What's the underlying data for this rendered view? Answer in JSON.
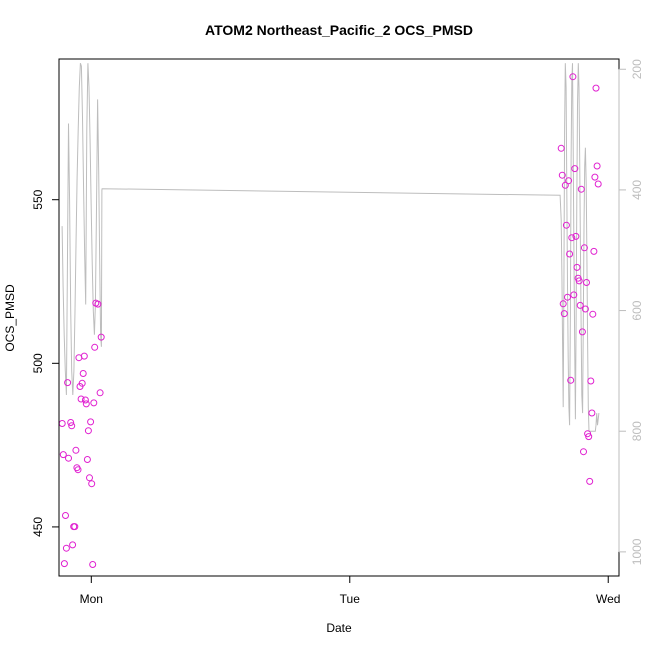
{
  "chart_data": {
    "type": "scatter",
    "title": "ATOM2 Northeast_Pacific_2 OCS_PMSD",
    "xlabel": "Date",
    "ylabel": "OCS_PMSD",
    "x_axis": {
      "type": "date",
      "range": [
        "Sun 21:00",
        "Wed 01:00"
      ],
      "ticks": [
        "Mon",
        "Tue",
        "Wed"
      ]
    },
    "y_left": {
      "range": [
        435,
        593
      ],
      "ticks": [
        450,
        500,
        550
      ]
    },
    "y_right": {
      "reversed": true,
      "range": [
        1040,
        183
      ],
      "ticks": [
        200,
        400,
        600,
        800,
        1000
      ],
      "tick_color": "#bdbdbd"
    },
    "grid": false,
    "legend": "none",
    "series": [
      {
        "type": "scatter",
        "marker": "open-circle",
        "color": "#e020d0",
        "axis": "left",
        "points": [
          [
            "Sun 21:18",
            481.6
          ],
          [
            "Sun 21:24",
            472.1
          ],
          [
            "Sun 21:30",
            438.8
          ],
          [
            "Sun 21:36",
            453.5
          ],
          [
            "Sun 21:41",
            443.5
          ],
          [
            "Sun 21:48",
            494.1
          ],
          [
            "Sun 21:53",
            471.0
          ],
          [
            "Sun 22:05",
            481.9
          ],
          [
            "Sun 22:11",
            480.9
          ],
          [
            "Sun 22:16",
            444.5
          ],
          [
            "Sun 22:22",
            450.1
          ],
          [
            "Sun 22:28",
            450.1
          ],
          [
            "Sun 22:34",
            473.4
          ],
          [
            "Sun 22:40",
            468.1
          ],
          [
            "Sun 22:46",
            467.5
          ],
          [
            "Sun 22:51",
            501.7
          ],
          [
            "Sun 22:57",
            492.9
          ],
          [
            "Sun 23:03",
            489.1
          ],
          [
            "Sun 23:09",
            493.9
          ],
          [
            "Sun 23:15",
            496.9
          ],
          [
            "Sun 23:21",
            502.2
          ],
          [
            "Sun 23:27",
            488.8
          ],
          [
            "Sun 23:32",
            487.6
          ],
          [
            "Sun 23:38",
            470.6
          ],
          [
            "Sun 23:44",
            479.4
          ],
          [
            "Sun 23:50",
            465.0
          ],
          [
            "Sun 23:56",
            482.1
          ],
          [
            "Mon 00:02",
            463.2
          ],
          [
            "Mon 00:08",
            438.5
          ],
          [
            "Mon 00:14",
            487.9
          ],
          [
            "Mon 00:19",
            504.9
          ],
          [
            "Mon 00:25",
            518.4
          ],
          [
            "Mon 00:37",
            518.1
          ],
          [
            "Mon 00:49",
            491.0
          ],
          [
            "Mon 00:55",
            508.0
          ],
          [
            "Tue 19:38",
            565.7
          ],
          [
            "Tue 19:44",
            557.5
          ],
          [
            "Tue 19:49",
            518.2
          ],
          [
            "Tue 19:55",
            515.2
          ],
          [
            "Tue 20:01",
            554.4
          ],
          [
            "Tue 20:07",
            542.2
          ],
          [
            "Tue 20:13",
            520.2
          ],
          [
            "Tue 20:19",
            555.8
          ],
          [
            "Tue 20:25",
            533.4
          ],
          [
            "Tue 20:31",
            494.8
          ],
          [
            "Tue 20:37",
            538.4
          ],
          [
            "Tue 20:43",
            587.6
          ],
          [
            "Tue 20:48",
            520.9
          ],
          [
            "Tue 20:54",
            559.5
          ],
          [
            "Tue 21:00",
            538.8
          ],
          [
            "Tue 21:06",
            529.3
          ],
          [
            "Tue 21:12",
            526.0
          ],
          [
            "Tue 21:18",
            525.2
          ],
          [
            "Tue 21:24",
            517.7
          ],
          [
            "Tue 21:30",
            553.2
          ],
          [
            "Tue 21:36",
            509.6
          ],
          [
            "Tue 21:42",
            473.0
          ],
          [
            "Tue 21:47",
            535.3
          ],
          [
            "Tue 21:53",
            516.6
          ],
          [
            "Tue 21:59",
            524.7
          ],
          [
            "Tue 22:05",
            478.5
          ],
          [
            "Tue 22:11",
            477.6
          ],
          [
            "Tue 22:17",
            463.9
          ],
          [
            "Tue 22:23",
            494.6
          ],
          [
            "Tue 22:29",
            484.8
          ],
          [
            "Tue 22:34",
            515.0
          ],
          [
            "Tue 22:40",
            534.2
          ],
          [
            "Tue 22:46",
            556.9
          ],
          [
            "Tue 22:52",
            584.1
          ],
          [
            "Tue 22:58",
            560.3
          ],
          [
            "Tue 23:04",
            554.8
          ]
        ]
      },
      {
        "type": "line",
        "color": "#bdbdbd",
        "axis": "right",
        "points": [
          [
            "Sun 21:17",
            460
          ],
          [
            "Sun 21:23",
            560
          ],
          [
            "Sun 21:29",
            640
          ],
          [
            "Sun 21:35",
            700
          ],
          [
            "Sun 21:41",
            740
          ],
          [
            "Sun 21:47",
            530
          ],
          [
            "Sun 21:53",
            290
          ],
          [
            "Sun 21:59",
            420
          ],
          [
            "Sun 22:05",
            600
          ],
          [
            "Sun 22:11",
            700
          ],
          [
            "Sun 22:17",
            740
          ],
          [
            "Sun 22:23",
            700
          ],
          [
            "Sun 22:29",
            600
          ],
          [
            "Sun 22:35",
            480
          ],
          [
            "Sun 22:41",
            380
          ],
          [
            "Sun 22:47",
            300
          ],
          [
            "Sun 22:53",
            230
          ],
          [
            "Sun 22:59",
            190
          ],
          [
            "Sun 23:05",
            195
          ],
          [
            "Sun 23:11",
            280
          ],
          [
            "Sun 23:17",
            400
          ],
          [
            "Sun 23:23",
            510
          ],
          [
            "Sun 23:29",
            590
          ],
          [
            "Sun 23:35",
            300
          ],
          [
            "Sun 23:41",
            190
          ],
          [
            "Sun 23:47",
            230
          ],
          [
            "Sun 23:53",
            320
          ],
          [
            "Sun 23:59",
            420
          ],
          [
            "Mon 00:05",
            520
          ],
          [
            "Mon 00:11",
            600
          ],
          [
            "Mon 00:17",
            640
          ],
          [
            "Mon 00:23",
            590
          ],
          [
            "Mon 00:29",
            430
          ],
          [
            "Mon 00:35",
            250
          ],
          [
            "Mon 00:41",
            370
          ],
          [
            "Mon 00:47",
            520
          ],
          [
            "Mon 00:52",
            640
          ],
          [
            "Mon 00:56",
            660
          ],
          [
            "Mon 00:59",
            400
          ],
          [
            "Mon 01:00",
            398
          ],
          [
            "Tue 19:32",
            409
          ],
          [
            "Tue 19:38",
            450
          ],
          [
            "Tue 19:42",
            540
          ],
          [
            "Tue 19:46",
            660
          ],
          [
            "Tue 19:49",
            760
          ],
          [
            "Tue 19:53",
            560
          ],
          [
            "Tue 19:57",
            300
          ],
          [
            "Tue 20:01",
            190
          ],
          [
            "Tue 20:05",
            230
          ],
          [
            "Tue 20:09",
            400
          ],
          [
            "Tue 20:13",
            560
          ],
          [
            "Tue 20:17",
            680
          ],
          [
            "Tue 20:21",
            760
          ],
          [
            "Tue 20:25",
            790
          ],
          [
            "Tue 20:29",
            600
          ],
          [
            "Tue 20:33",
            350
          ],
          [
            "Tue 20:37",
            220
          ],
          [
            "Tue 20:41",
            190
          ],
          [
            "Tue 20:45",
            330
          ],
          [
            "Tue 20:49",
            500
          ],
          [
            "Tue 20:53",
            660
          ],
          [
            "Tue 20:57",
            780
          ],
          [
            "Tue 21:01",
            620
          ],
          [
            "Tue 21:05",
            420
          ],
          [
            "Tue 21:09",
            260
          ],
          [
            "Tue 21:13",
            190
          ],
          [
            "Tue 21:17",
            230
          ],
          [
            "Tue 21:21",
            350
          ],
          [
            "Tue 21:25",
            490
          ],
          [
            "Tue 21:29",
            620
          ],
          [
            "Tue 21:33",
            740
          ],
          [
            "Tue 21:37",
            770
          ],
          [
            "Tue 21:41",
            620
          ],
          [
            "Tue 21:45",
            460
          ],
          [
            "Tue 21:49",
            360
          ],
          [
            "Tue 21:53",
            330
          ],
          [
            "Tue 21:57",
            390
          ],
          [
            "Tue 22:01",
            510
          ],
          [
            "Tue 22:05",
            650
          ],
          [
            "Tue 22:09",
            760
          ],
          [
            "Tue 22:13",
            800
          ],
          [
            "Tue 22:18",
            800
          ],
          [
            "Tue 22:23",
            800
          ],
          [
            "Tue 22:28",
            800
          ],
          [
            "Tue 22:33",
            800
          ],
          [
            "Tue 22:38",
            800
          ],
          [
            "Tue 22:43",
            800
          ],
          [
            "Tue 22:48",
            800
          ],
          [
            "Tue 22:52",
            790
          ],
          [
            "Tue 22:56",
            770
          ],
          [
            "Tue 23:00",
            790
          ],
          [
            "Tue 23:04",
            780
          ],
          [
            "Tue 23:08",
            770
          ]
        ]
      }
    ]
  }
}
